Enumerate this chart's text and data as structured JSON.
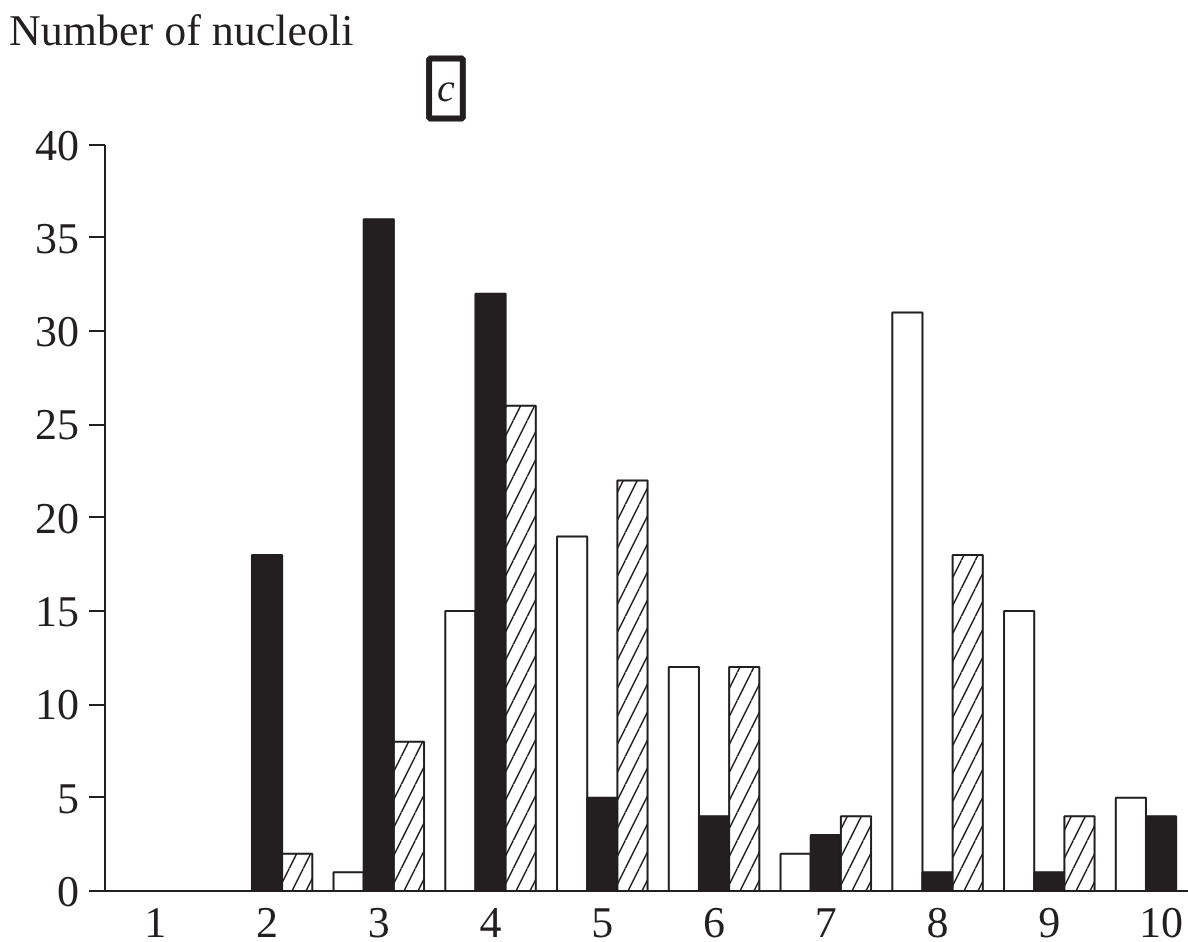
{
  "chart_data": {
    "type": "bar",
    "ylabel": "Number of nucleoli",
    "annotations": [
      "c"
    ],
    "categories": [
      "1",
      "2",
      "3",
      "4",
      "5",
      "6",
      "7",
      "8",
      "9",
      "10"
    ],
    "series": [
      {
        "color": "#ffffff",
        "values": [
          0,
          0,
          1,
          15,
          19,
          12,
          2,
          31,
          15,
          5
        ]
      },
      {
        "color": "#231f20",
        "values": [
          0,
          18,
          36,
          32,
          5,
          4,
          3,
          1,
          1,
          4
        ]
      },
      {
        "color": "#ffffff",
        "values": [
          0,
          2,
          8,
          26,
          22,
          12,
          4,
          18,
          4,
          0
        ]
      }
    ],
    "ylim": [
      0,
      40
    ],
    "yticks": [
      0,
      5,
      10,
      15,
      20,
      25,
      30,
      35,
      40
    ],
    "grid": false
  }
}
